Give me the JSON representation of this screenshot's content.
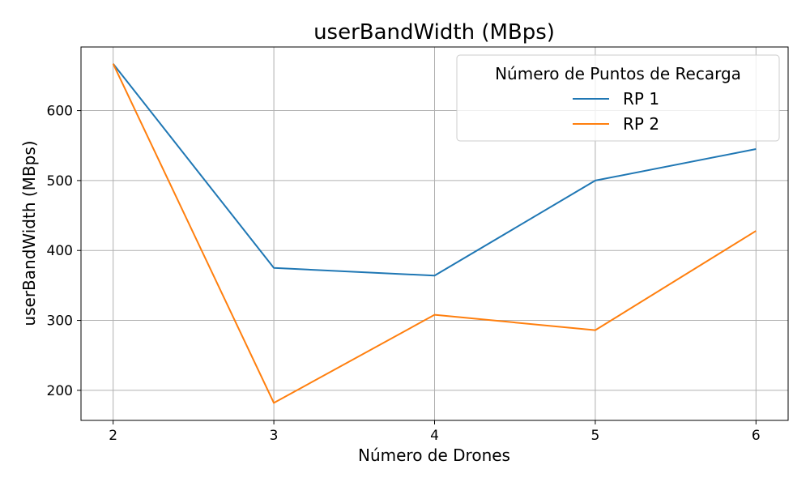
{
  "chart_data": {
    "type": "line",
    "title": "userBandWidth (MBps)",
    "xlabel": "Número de Drones",
    "ylabel": "userBandWidth (MBps)",
    "x": [
      2,
      3,
      4,
      5,
      6
    ],
    "xlim": [
      1.8,
      6.2
    ],
    "ylim": [
      157,
      691
    ],
    "yticks": [
      200,
      300,
      400,
      500,
      600
    ],
    "grid": true,
    "legend": {
      "title": "Número de Puntos de Recarga",
      "placement": "top-right"
    },
    "series": [
      {
        "name": "RP 1",
        "color": "#1f77b4",
        "values": [
          667,
          375,
          364,
          500,
          545
        ]
      },
      {
        "name": "RP 2",
        "color": "#ff7f0e",
        "values": [
          667,
          182,
          308,
          286,
          428
        ]
      }
    ]
  }
}
